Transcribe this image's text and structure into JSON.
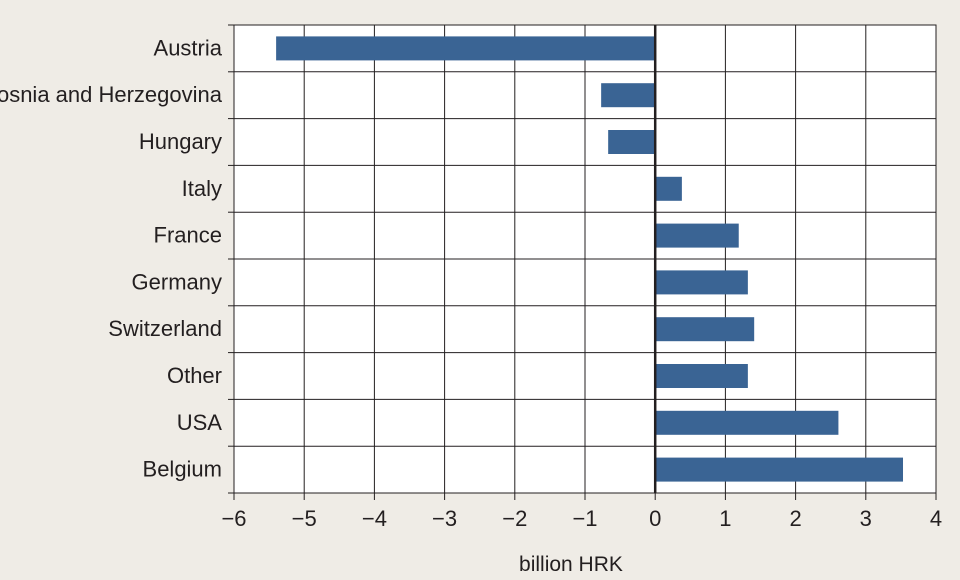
{
  "chart_data": {
    "type": "bar",
    "orientation": "horizontal",
    "categories": [
      "Austria",
      "Bosnia and Herzegovina",
      "Hungary",
      "Italy",
      "France",
      "Germany",
      "Switzerland",
      "Other",
      "USA",
      "Belgium"
    ],
    "values": [
      -5.4,
      -0.77,
      -0.67,
      0.38,
      1.19,
      1.32,
      1.41,
      1.32,
      2.61,
      3.53
    ],
    "xlabel": "billion HRK",
    "ylabel": "",
    "xlim": [
      -6,
      4
    ],
    "xticks": [
      -6,
      -5,
      -4,
      -3,
      -2,
      -1,
      0,
      1,
      2,
      3,
      4
    ],
    "xtick_labels": [
      "−6",
      "−5",
      "−4",
      "−3",
      "−2",
      "−1",
      "0",
      "1",
      "2",
      "3",
      "4"
    ],
    "grid": true,
    "legend": "none"
  },
  "colors": {
    "bar": "#3a6494",
    "grid": "#231f20",
    "background": "#efece6",
    "plot_background": "#ffffff"
  }
}
